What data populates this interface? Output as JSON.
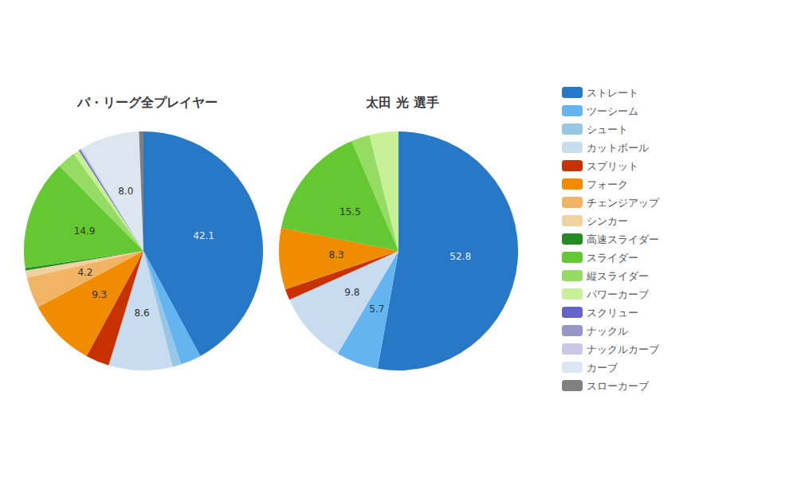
{
  "chart_data": [
    {
      "type": "pie",
      "title": "パ・リーグ全プレイヤー",
      "categories": [
        "ストレート",
        "ツーシーム",
        "シュート",
        "カットボール",
        "スプリット",
        "フォーク",
        "チェンジアップ",
        "シンカー",
        "高速スライダー",
        "スライダー",
        "縦スライダー",
        "パワーカーブ",
        "スクリュー",
        "ナックル",
        "ナックルカーブ",
        "カーブ",
        "スローカーブ"
      ],
      "values": [
        42.1,
        2.8,
        1.2,
        8.6,
        3.2,
        9.3,
        4.2,
        1.0,
        0.3,
        14.9,
        2.5,
        0.8,
        0.2,
        0.1,
        0.2,
        8.0,
        0.6
      ],
      "value_labels": [
        "42.1",
        null,
        null,
        "8.6",
        null,
        "9.3",
        "4.2",
        null,
        null,
        "14.9",
        null,
        null,
        null,
        null,
        null,
        "8.0",
        null
      ],
      "colors": [
        "#2878C8",
        "#64B4F0",
        "#96C8E6",
        "#C8DCF0",
        "#C83200",
        "#F08C00",
        "#F0B464",
        "#F0D2A0",
        "#228B22",
        "#64C832",
        "#96DC64",
        "#C8F096",
        "#6464C8",
        "#9696C8",
        "#C8C8E6",
        "#DCE6F0",
        "#808080"
      ],
      "legend": "right"
    },
    {
      "type": "pie",
      "title": "太田 光 選手",
      "categories": [
        "ストレート",
        "ツーシーム",
        "カットボール",
        "スプリット",
        "フォーク",
        "スライダー",
        "縦スライダー",
        "パワーカーブ"
      ],
      "values": [
        52.8,
        5.7,
        9.8,
        1.5,
        8.3,
        15.5,
        2.5,
        3.9
      ],
      "value_labels": [
        "52.8",
        "5.7",
        "9.8",
        null,
        "8.3",
        "15.5",
        null,
        null
      ],
      "colors": [
        "#2878C8",
        "#64B4F0",
        "#C8DCF0",
        "#C83200",
        "#F08C00",
        "#64C832",
        "#96DC64",
        "#C8F096"
      ],
      "legend": "right"
    }
  ]
}
